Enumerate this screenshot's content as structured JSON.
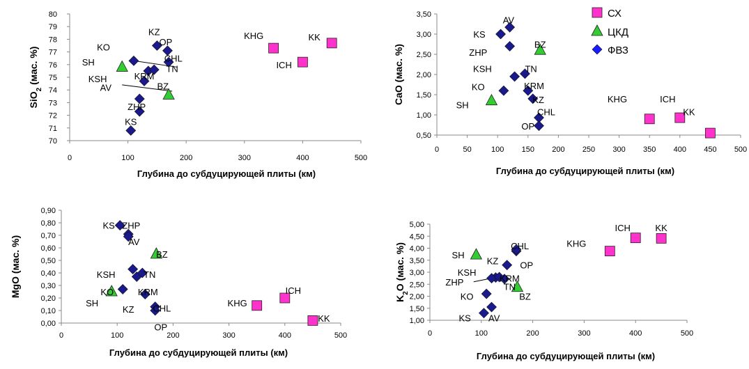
{
  "colors": {
    "sx": "#ff33cc",
    "ckd": "#33cc33",
    "fvz": "#1a1a8c",
    "fvz_legend": "#1a1aff"
  },
  "legend": {
    "items": [
      "СХ",
      "ЦКД",
      "ФВЗ"
    ]
  },
  "chart_data": [
    {
      "type": "scatter",
      "xlabel": "Глубина до субдуцирующей плиты (км)",
      "ylabel": "SiO",
      "ylabel_sub": "2",
      "ylabel_rest": " (мас. %)",
      "xlim": [
        0,
        500
      ],
      "ylim": [
        70,
        80
      ],
      "xticks": [
        "0",
        "100",
        "200",
        "300",
        "400",
        "500"
      ],
      "yticks": [
        "70",
        "71",
        "72",
        "73",
        "74",
        "75",
        "76",
        "77",
        "78",
        "79",
        "80"
      ],
      "series": [
        {
          "name": "СХ",
          "marker": "square",
          "points": [
            {
              "x": 350,
              "y": 77.3
            },
            {
              "x": 400,
              "y": 76.2
            },
            {
              "x": 450,
              "y": 77.7
            }
          ]
        },
        {
          "name": "ЦКД",
          "marker": "triangle",
          "points": [
            {
              "x": 90,
              "y": 75.8
            },
            {
              "x": 170,
              "y": 73.6
            }
          ]
        },
        {
          "name": "ФВЗ",
          "marker": "diamond",
          "points": [
            {
              "x": 105,
              "y": 70.8
            },
            {
              "x": 110,
              "y": 76.3
            },
            {
              "x": 120,
              "y": 72.3
            },
            {
              "x": 120,
              "y": 73.3
            },
            {
              "x": 128,
              "y": 74.7
            },
            {
              "x": 135,
              "y": 75.5
            },
            {
              "x": 145,
              "y": 75.6
            },
            {
              "x": 150,
              "y": 77.5
            },
            {
              "x": 168,
              "y": 77.1
            },
            {
              "x": 170,
              "y": 76.2
            }
          ]
        }
      ],
      "labels": [
        {
          "text": "KZ",
          "x": 145,
          "y": 78.6
        },
        {
          "text": "OP",
          "x": 165,
          "y": 77.8
        },
        {
          "text": "KO",
          "x": 58,
          "y": 77.4
        },
        {
          "text": "CHL",
          "x": 178,
          "y": 76.5
        },
        {
          "text": "SH",
          "x": 32,
          "y": 76.2
        },
        {
          "text": "TN",
          "x": 176,
          "y": 75.7
        },
        {
          "text": "KRM",
          "x": 128,
          "y": 75.1
        },
        {
          "text": "KSH",
          "x": 48,
          "y": 74.9
        },
        {
          "text": "AV",
          "x": 62,
          "y": 74.2
        },
        {
          "text": "BZ",
          "x": 160,
          "y": 74.3
        },
        {
          "text": "ZHP",
          "x": 115,
          "y": 72.7
        },
        {
          "text": "KS",
          "x": 105,
          "y": 71.5
        },
        {
          "text": "KHG",
          "x": 316,
          "y": 78.3
        },
        {
          "text": "KK",
          "x": 420,
          "y": 78.2
        },
        {
          "text": "ICH",
          "x": 368,
          "y": 76.0
        }
      ]
    },
    {
      "type": "scatter",
      "xlabel": "Глубина до субдуцирующей плиты (км)",
      "ylabel": "CaO (мас. %)",
      "xlim": [
        0,
        500
      ],
      "ylim": [
        0.5,
        3.5
      ],
      "xticks": [
        "0",
        "50",
        "100",
        "150",
        "200",
        "250",
        "300",
        "350",
        "400",
        "450",
        "500"
      ],
      "yticks": [
        "0,50",
        "1,00",
        "1,50",
        "2,00",
        "2,50",
        "3,00",
        "3,50"
      ],
      "series": [
        {
          "name": "СХ",
          "marker": "square",
          "points": [
            {
              "x": 350,
              "y": 0.9
            },
            {
              "x": 400,
              "y": 0.93
            },
            {
              "x": 450,
              "y": 0.55
            }
          ]
        },
        {
          "name": "ЦКД",
          "marker": "triangle",
          "points": [
            {
              "x": 90,
              "y": 1.35
            },
            {
              "x": 170,
              "y": 2.6
            }
          ]
        },
        {
          "name": "ФВЗ",
          "marker": "diamond",
          "points": [
            {
              "x": 105,
              "y": 3.0
            },
            {
              "x": 120,
              "y": 3.17
            },
            {
              "x": 120,
              "y": 2.7
            },
            {
              "x": 128,
              "y": 1.95
            },
            {
              "x": 110,
              "y": 1.6
            },
            {
              "x": 145,
              "y": 2.02
            },
            {
              "x": 150,
              "y": 1.6
            },
            {
              "x": 158,
              "y": 1.4
            },
            {
              "x": 168,
              "y": 0.93
            },
            {
              "x": 168,
              "y": 0.73
            }
          ]
        }
      ],
      "labels": [
        {
          "text": "AV",
          "x": 118,
          "y": 3.35
        },
        {
          "text": "KS",
          "x": 70,
          "y": 3.0
        },
        {
          "text": "BZ",
          "x": 170,
          "y": 2.75
        },
        {
          "text": "ZHP",
          "x": 68,
          "y": 2.55
        },
        {
          "text": "KSH",
          "x": 75,
          "y": 2.15
        },
        {
          "text": "TN",
          "x": 155,
          "y": 2.15
        },
        {
          "text": "KO",
          "x": 68,
          "y": 1.7
        },
        {
          "text": "KRM",
          "x": 160,
          "y": 1.72
        },
        {
          "text": "KZ",
          "x": 167,
          "y": 1.38
        },
        {
          "text": "SH",
          "x": 42,
          "y": 1.25
        },
        {
          "text": "CHL",
          "x": 180,
          "y": 1.08
        },
        {
          "text": "OP",
          "x": 150,
          "y": 0.72
        },
        {
          "text": "KHG",
          "x": 297,
          "y": 1.4
        },
        {
          "text": "ICH",
          "x": 380,
          "y": 1.4
        },
        {
          "text": "KK",
          "x": 415,
          "y": 1.08
        }
      ]
    },
    {
      "type": "scatter",
      "xlabel": "Глубина до субдуцирующей плиты (км)",
      "ylabel": "MgO  (мас. %)",
      "xlim": [
        0,
        500
      ],
      "ylim": [
        0,
        0.9
      ],
      "xticks": [
        "0",
        "100",
        "200",
        "300",
        "400",
        "500"
      ],
      "yticks": [
        "0,00",
        "0,10",
        "0,20",
        "0,30",
        "0,40",
        "0,50",
        "0,60",
        "0,70",
        "0,80",
        "0,90"
      ],
      "series": [
        {
          "name": "СХ",
          "marker": "square",
          "points": [
            {
              "x": 350,
              "y": 0.14
            },
            {
              "x": 400,
              "y": 0.2
            },
            {
              "x": 450,
              "y": 0.02
            }
          ]
        },
        {
          "name": "ЦКД",
          "marker": "triangle",
          "points": [
            {
              "x": 90,
              "y": 0.25
            },
            {
              "x": 170,
              "y": 0.55
            }
          ]
        },
        {
          "name": "ФВЗ",
          "marker": "diamond",
          "points": [
            {
              "x": 105,
              "y": 0.78
            },
            {
              "x": 120,
              "y": 0.71
            },
            {
              "x": 120,
              "y": 0.69
            },
            {
              "x": 128,
              "y": 0.43
            },
            {
              "x": 135,
              "y": 0.37
            },
            {
              "x": 145,
              "y": 0.4
            },
            {
              "x": 110,
              "y": 0.27
            },
            {
              "x": 150,
              "y": 0.23
            },
            {
              "x": 168,
              "y": 0.13
            },
            {
              "x": 168,
              "y": 0.1
            }
          ]
        }
      ],
      "labels": [
        {
          "text": "KS",
          "x": 85,
          "y": 0.78
        },
        {
          "text": "ZHP",
          "x": 125,
          "y": 0.78
        },
        {
          "text": "AV",
          "x": 130,
          "y": 0.65
        },
        {
          "text": "BZ",
          "x": 180,
          "y": 0.55
        },
        {
          "text": "KSH",
          "x": 80,
          "y": 0.39
        },
        {
          "text": "TN",
          "x": 158,
          "y": 0.39
        },
        {
          "text": "KO",
          "x": 82,
          "y": 0.25
        },
        {
          "text": "KRM",
          "x": 155,
          "y": 0.25
        },
        {
          "text": "SH",
          "x": 55,
          "y": 0.16
        },
        {
          "text": "KZ",
          "x": 120,
          "y": 0.11
        },
        {
          "text": "CHL",
          "x": 180,
          "y": 0.12
        },
        {
          "text": "OP",
          "x": 178,
          "y": -0.03
        },
        {
          "text": "KHG",
          "x": 315,
          "y": 0.16
        },
        {
          "text": "ICH",
          "x": 415,
          "y": 0.26
        },
        {
          "text": "KK",
          "x": 470,
          "y": 0.04
        }
      ]
    },
    {
      "type": "scatter",
      "xlabel": "Глубина до субдуцирующей плиты (км)",
      "ylabel": "K",
      "ylabel_sub": "2",
      "ylabel_rest": "O (мас. %)",
      "xlim": [
        0,
        500
      ],
      "ylim": [
        1,
        5
      ],
      "xticks": [
        "0",
        "100",
        "200",
        "300",
        "400",
        "500"
      ],
      "yticks": [
        "1,00",
        "1,50",
        "2,00",
        "2,50",
        "3,00",
        "3,50",
        "4,00",
        "4,50",
        "5,00"
      ],
      "series": [
        {
          "name": "СХ",
          "marker": "square",
          "points": [
            {
              "x": 350,
              "y": 3.88
            },
            {
              "x": 400,
              "y": 4.43
            },
            {
              "x": 450,
              "y": 4.41
            }
          ]
        },
        {
          "name": "ЦКД",
          "marker": "triangle",
          "points": [
            {
              "x": 90,
              "y": 3.72
            },
            {
              "x": 170,
              "y": 2.37
            }
          ]
        },
        {
          "name": "ФВЗ",
          "marker": "diamond",
          "points": [
            {
              "x": 105,
              "y": 1.3
            },
            {
              "x": 120,
              "y": 1.55
            },
            {
              "x": 110,
              "y": 2.1
            },
            {
              "x": 128,
              "y": 2.78
            },
            {
              "x": 120,
              "y": 2.75
            },
            {
              "x": 135,
              "y": 2.8
            },
            {
              "x": 145,
              "y": 2.72
            },
            {
              "x": 150,
              "y": 3.3
            },
            {
              "x": 168,
              "y": 3.88
            },
            {
              "x": 168,
              "y": 3.95
            }
          ]
        }
      ],
      "labels": [
        {
          "text": "ICH",
          "x": 375,
          "y": 4.85
        },
        {
          "text": "KK",
          "x": 450,
          "y": 4.85
        },
        {
          "text": "KHG",
          "x": 285,
          "y": 4.2
        },
        {
          "text": "SH",
          "x": 55,
          "y": 3.72
        },
        {
          "text": "CHL",
          "x": 175,
          "y": 4.1
        },
        {
          "text": "KZ",
          "x": 122,
          "y": 3.48
        },
        {
          "text": "OP",
          "x": 188,
          "y": 3.3
        },
        {
          "text": "KSH",
          "x": 72,
          "y": 3.0
        },
        {
          "text": "KRM",
          "x": 155,
          "y": 2.75
        },
        {
          "text": "ZHP",
          "x": 48,
          "y": 2.6
        },
        {
          "text": "TN",
          "x": 155,
          "y": 2.4
        },
        {
          "text": "KO",
          "x": 72,
          "y": 2.0
        },
        {
          "text": "BZ",
          "x": 185,
          "y": 2.0
        },
        {
          "text": "KS",
          "x": 68,
          "y": 1.1
        },
        {
          "text": "AV",
          "x": 125,
          "y": 1.1
        }
      ]
    }
  ]
}
